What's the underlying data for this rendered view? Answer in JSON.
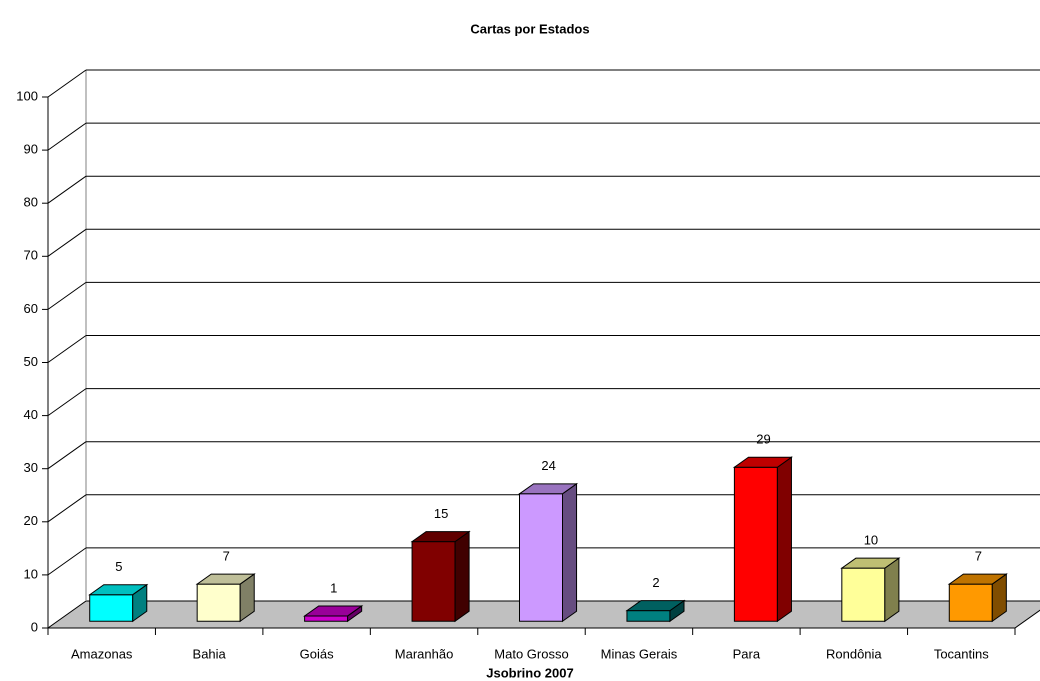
{
  "chart_data": {
    "type": "bar3d",
    "title": "Cartas por Estados",
    "x_label": "Jsobrino 2007",
    "categories": [
      "Amazonas",
      "Bahia",
      "Goiás",
      "Maranhão",
      "Mato Grosso",
      "Minas Gerais",
      "Para",
      "Rondônia",
      "Tocantins"
    ],
    "values": [
      5,
      7,
      1,
      15,
      24,
      2,
      29,
      10,
      7
    ],
    "colors": [
      "#00ffff",
      "#ffffcc",
      "#cc00cc",
      "#800000",
      "#cc99ff",
      "#008080",
      "#ff0000",
      "#ffff99",
      "#ff9900"
    ],
    "ylim": [
      0,
      100
    ],
    "yticks": [
      0,
      10,
      20,
      30,
      40,
      50,
      60,
      70,
      80,
      90,
      100
    ],
    "grid": true
  }
}
